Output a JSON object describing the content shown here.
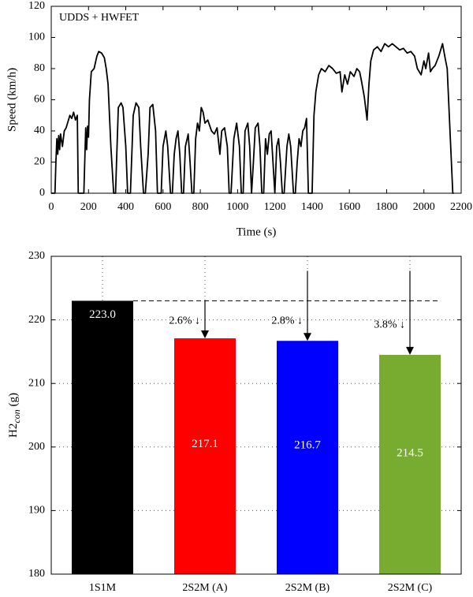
{
  "chart_data": [
    {
      "type": "line",
      "annotation": "UDDS + HWFET",
      "xlabel": "Time (s)",
      "ylabel": "Speed (km/h)",
      "color": "#000000",
      "grid": false,
      "xlim": [
        0,
        2200
      ],
      "xticks": [
        0,
        200,
        400,
        600,
        800,
        1000,
        1200,
        1400,
        1600,
        1800,
        2000,
        2200
      ],
      "ylim": [
        0,
        120
      ],
      "yticks": [
        0,
        20,
        40,
        60,
        80,
        100,
        120
      ],
      "x": [
        0,
        20,
        25,
        30,
        35,
        40,
        45,
        50,
        60,
        70,
        80,
        100,
        110,
        120,
        130,
        140,
        145,
        165,
        175,
        185,
        190,
        195,
        200,
        205,
        215,
        230,
        245,
        255,
        270,
        285,
        295,
        305,
        320,
        335,
        345,
        360,
        375,
        385,
        400,
        410,
        425,
        440,
        455,
        470,
        480,
        495,
        505,
        520,
        530,
        545,
        560,
        570,
        590,
        600,
        615,
        625,
        640,
        650,
        660,
        670,
        680,
        690,
        700,
        710,
        720,
        735,
        745,
        755,
        765,
        775,
        785,
        795,
        805,
        815,
        825,
        840,
        860,
        875,
        890,
        905,
        915,
        930,
        945,
        955,
        965,
        980,
        995,
        1010,
        1020,
        1030,
        1040,
        1055,
        1065,
        1075,
        1085,
        1095,
        1110,
        1120,
        1130,
        1140,
        1150,
        1160,
        1170,
        1180,
        1190,
        1200,
        1210,
        1220,
        1230,
        1240,
        1250,
        1265,
        1275,
        1285,
        1300,
        1310,
        1320,
        1330,
        1340,
        1350,
        1360,
        1370,
        1380,
        1395,
        1400,
        1410,
        1420,
        1435,
        1450,
        1470,
        1490,
        1510,
        1530,
        1550,
        1560,
        1575,
        1590,
        1605,
        1625,
        1640,
        1655,
        1665,
        1680,
        1695,
        1705,
        1715,
        1730,
        1750,
        1770,
        1790,
        1810,
        1830,
        1850,
        1870,
        1890,
        1910,
        1930,
        1950,
        1965,
        1985,
        2000,
        2010,
        2025,
        2035,
        2045,
        2060,
        2080,
        2100,
        2115,
        2125,
        2140,
        2155,
        2160
      ],
      "values": [
        0,
        0,
        20,
        35,
        25,
        37,
        28,
        38,
        30,
        40,
        42,
        50,
        48,
        52,
        47,
        50,
        0,
        0,
        0,
        42,
        28,
        43,
        36,
        60,
        78,
        80,
        88,
        91,
        90,
        87,
        80,
        70,
        30,
        0,
        0,
        55,
        58,
        55,
        30,
        0,
        0,
        50,
        58,
        55,
        30,
        0,
        0,
        25,
        55,
        57,
        40,
        0,
        0,
        30,
        40,
        30,
        0,
        0,
        25,
        35,
        40,
        25,
        0,
        0,
        30,
        38,
        20,
        0,
        0,
        35,
        45,
        40,
        55,
        52,
        45,
        47,
        40,
        38,
        42,
        25,
        40,
        42,
        30,
        0,
        0,
        35,
        45,
        30,
        0,
        0,
        40,
        45,
        30,
        0,
        20,
        42,
        45,
        30,
        0,
        0,
        35,
        25,
        38,
        40,
        20,
        0,
        30,
        35,
        20,
        0,
        0,
        30,
        38,
        30,
        0,
        0,
        20,
        35,
        30,
        40,
        42,
        48,
        0,
        0,
        0,
        50,
        65,
        76,
        80,
        78,
        82,
        80,
        77,
        78,
        65,
        76,
        70,
        78,
        75,
        80,
        78,
        72,
        62,
        47,
        70,
        85,
        92,
        94,
        91,
        96,
        94,
        96,
        94,
        92,
        93,
        90,
        91,
        88,
        80,
        76,
        85,
        80,
        90,
        78,
        80,
        82,
        88,
        96,
        86,
        80,
        40,
        0,
        0
      ]
    },
    {
      "type": "bar",
      "ylabel": {
        "main": "H2",
        "sub": "con",
        "unit": " (g)"
      },
      "grid": true,
      "categories": [
        "1S1M",
        "2S2M (A)",
        "2S2M (B)",
        "2S2M (C)"
      ],
      "values": [
        223.0,
        217.1,
        216.7,
        214.5
      ],
      "value_labels": [
        "223.0",
        "217.1",
        "216.7",
        "214.5"
      ],
      "colors": [
        "#000000",
        "#ff0000",
        "#0000ff",
        "#77ac30"
      ],
      "ylim": [
        180,
        230
      ],
      "yticks": [
        180,
        190,
        200,
        210,
        220,
        230
      ],
      "annotations": [
        "2.6% ↓",
        "2.8% ↓",
        "3.8% ↓"
      ]
    }
  ]
}
